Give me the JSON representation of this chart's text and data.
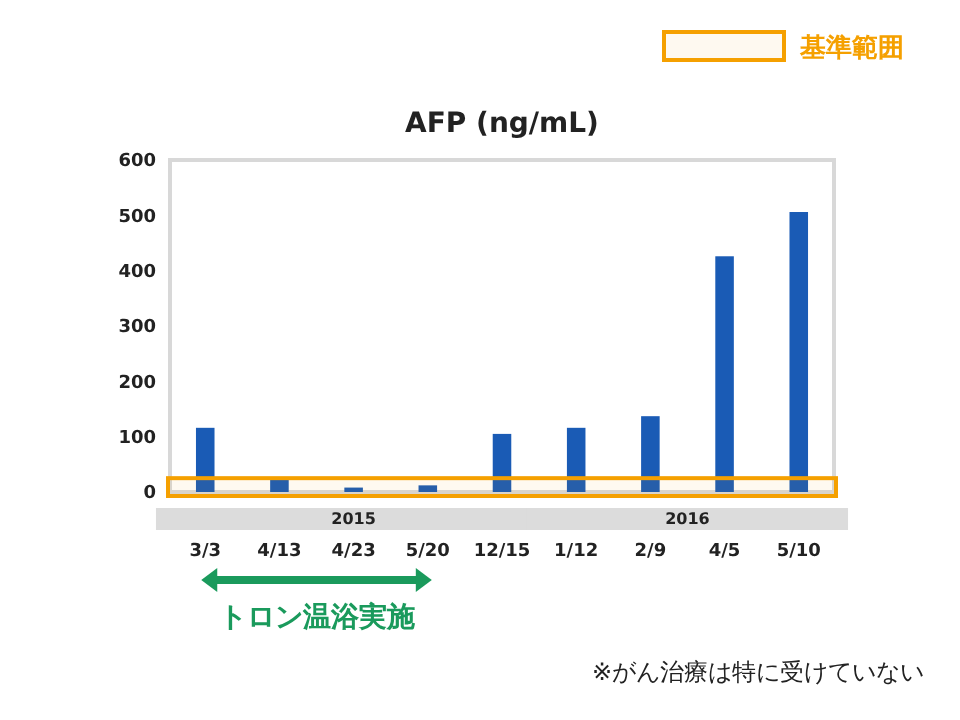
{
  "chart_data": {
    "type": "bar",
    "title": "AFP (ng/mL)",
    "categories": [
      "3/3",
      "4/13",
      "4/23",
      "5/20",
      "12/15",
      "1/12",
      "2/9",
      "4/5",
      "5/10"
    ],
    "values": [
      116,
      22,
      8,
      12,
      105,
      116,
      137,
      426,
      506
    ],
    "color": "#1a5bb5",
    "ylim": [
      0,
      600
    ],
    "yticks": [
      0,
      100,
      200,
      300,
      400,
      500,
      600
    ],
    "grid": false,
    "bands": [
      {
        "axis": "y",
        "from": 0,
        "to": 25,
        "label": "基準範囲",
        "color": "#f5a000"
      }
    ],
    "annotations": [
      "2015",
      "2016",
      "トロン温浴実施",
      "※がん治療は特に受けていない"
    ]
  }
}
